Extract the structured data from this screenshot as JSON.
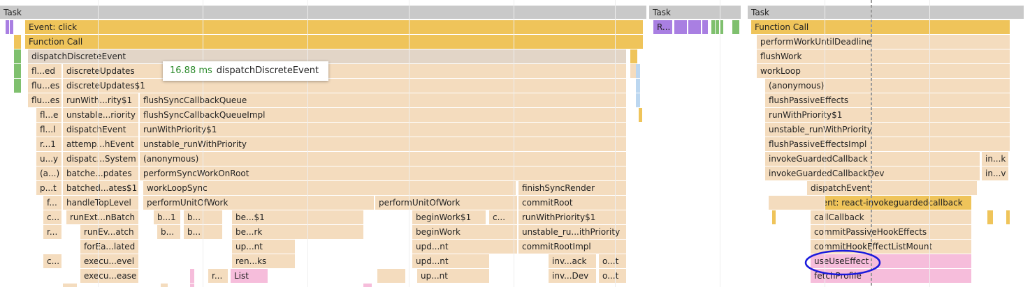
{
  "tasks": [
    "Task",
    "Task",
    "Task"
  ],
  "flame": {
    "rows": [
      [
        "Event: click",
        "R...",
        "Function Call"
      ],
      [
        "Function Call",
        "performWorkUntilDeadline"
      ],
      [
        "dispatchDiscreteEvent",
        "flushWork"
      ],
      [
        "fl...ed",
        "discreteUpdates",
        "workLoop"
      ],
      [
        "flu...es",
        "discreteUpdates$1",
        "(anonymous)"
      ],
      [
        "flu...es",
        "runWith...rity$1",
        "flushSyncCallbackQueue",
        "flushPassiveEffects"
      ],
      [
        "fl...e",
        "unstable...riority",
        "flushSyncCallbackQueueImpl",
        "runWithPriority$1"
      ],
      [
        "fl...l",
        "dispatchEvent",
        "runWithPriority$1",
        "unstable_runWithPriority"
      ],
      [
        "r...1",
        "attemp...hEvent",
        "unstable_runWithPriority",
        "flushPassiveEffectsImpl"
      ],
      [
        "u...y",
        "dispatc...System",
        "(anonymous)",
        "invokeGuardedCallback",
        "in...k"
      ],
      [
        "(a...)",
        "batche...pdates",
        "performSyncWorkOnRoot",
        "invokeGuardedCallbackDev",
        "in...v"
      ],
      [
        "p...t",
        "batched...ates$1",
        "workLoopSync",
        "finishSyncRender",
        "dispatchEvent"
      ],
      [
        "f...",
        "handleTopLevel",
        "performUnitOfWork",
        "performUnitOfWork",
        "commitRoot",
        "Event: react-invokeguardedcallback"
      ],
      [
        "c...",
        "runExt...nBatch",
        "b...1",
        "b...",
        "be...$1",
        "beginWork$1",
        "c...",
        "runWithPriority$1",
        "callCallback"
      ],
      [
        "r...",
        "runEv...atch",
        "b...",
        "b...",
        "be...rk",
        "beginWork",
        "unstable_ru...ithPriority",
        "commitPassiveHookEffects"
      ],
      [
        "forEa...lated",
        "up...nt",
        "upd...nt",
        "commitRootImpl",
        "commitHookEffectListMount"
      ],
      [
        "c...",
        "execu...evel",
        "ren...ks",
        "upd...nt",
        "inv...ack",
        "o...t",
        "useUseEffect"
      ],
      [
        "execu...ease",
        "r...",
        "List",
        "up...nt",
        "inv...Dev",
        "o...t",
        "fetchProfile"
      ]
    ]
  },
  "tooltip": {
    "duration": "16.88 ms",
    "name": "dispatchDiscreteEvent"
  }
}
